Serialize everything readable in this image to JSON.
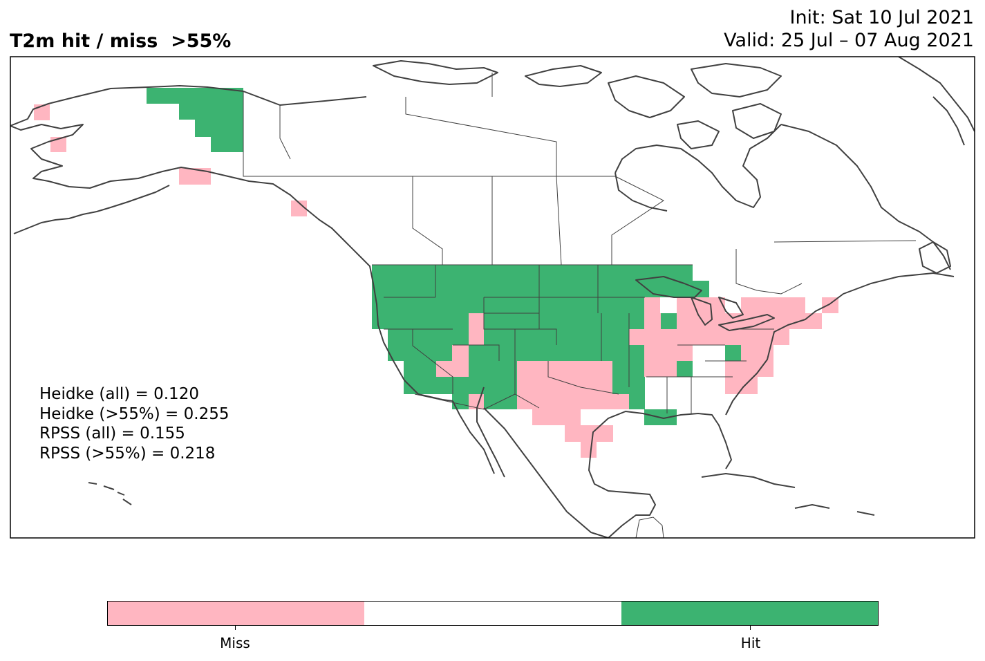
{
  "title": "T2m hit / miss  >55%",
  "init_label": "Init: Sat 10 Jul 2021",
  "valid_label": "Valid: 25 Jul – 07 Aug 2021",
  "scores": [
    "Heidke (all) = 0.120",
    "Heidke (>55%) = 0.255",
    "RPSS (all) = 0.155",
    "RPSS (>55%) = 0.218"
  ],
  "legend": {
    "miss_label": "Miss",
    "hit_label": "Hit",
    "miss_color": "#ffb6c1",
    "neutral_color": "#ffffff",
    "hit_color": "#3cb371"
  },
  "colors": {
    "coastline": "#404040",
    "frame": "#000000"
  }
}
